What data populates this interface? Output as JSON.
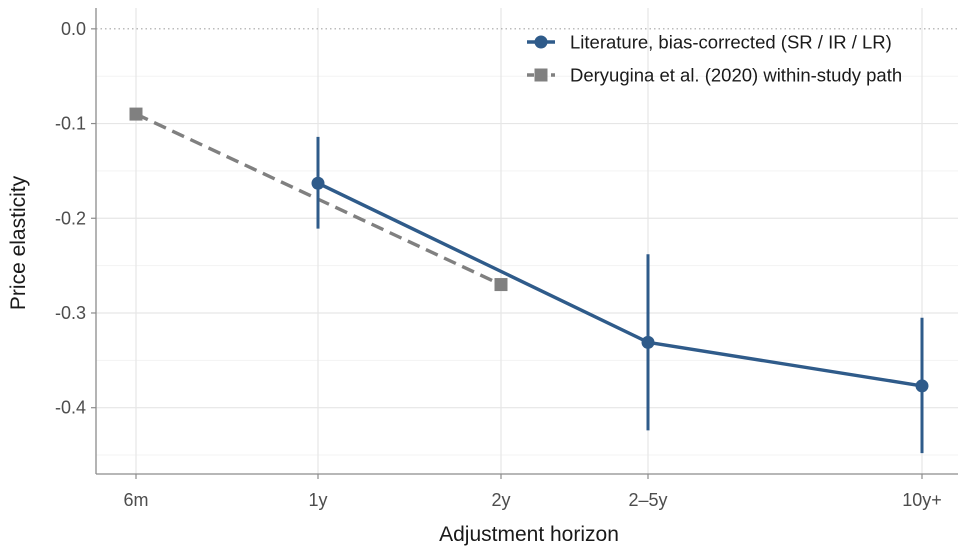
{
  "chart_data": {
    "type": "line",
    "xlabel": "Adjustment horizon",
    "ylabel": "Price elasticity",
    "x_ticks": [
      {
        "label": "6m",
        "value": 0.5
      },
      {
        "label": "1y",
        "value": 1
      },
      {
        "label": "2y",
        "value": 2
      },
      {
        "label": "2–5y",
        "value": 3.5
      },
      {
        "label": "10y+",
        "value": 10
      }
    ],
    "y_ticks": [
      {
        "label": "0.0",
        "value": 0.0
      },
      {
        "label": "-0.1",
        "value": -0.1
      },
      {
        "label": "-0.2",
        "value": -0.2
      },
      {
        "label": "-0.3",
        "value": -0.3
      },
      {
        "label": "-0.4",
        "value": -0.4
      }
    ],
    "ylim": [
      -0.47,
      0.022
    ],
    "reference_line": {
      "y": 0.0,
      "style": "dotted"
    },
    "grid": true,
    "legend_position": "top-right",
    "series": [
      {
        "name": "Literature, bias-corrected (SR / IR / LR)",
        "color": "#2f5b8a",
        "marker": "circle",
        "line": "solid",
        "points": [
          {
            "x": "1y",
            "y": -0.163,
            "ci_low": -0.211,
            "ci_high": -0.114
          },
          {
            "x": "2–5y",
            "y": -0.331,
            "ci_low": -0.424,
            "ci_high": -0.238
          },
          {
            "x": "10y+",
            "y": -0.377,
            "ci_low": -0.448,
            "ci_high": -0.305
          }
        ]
      },
      {
        "name": "Deryugina et al. (2020) within-study path",
        "color": "#808080",
        "marker": "square",
        "line": "dashed",
        "points": [
          {
            "x": "6m",
            "y": -0.09
          },
          {
            "x": "2y",
            "y": -0.27
          }
        ]
      }
    ]
  }
}
